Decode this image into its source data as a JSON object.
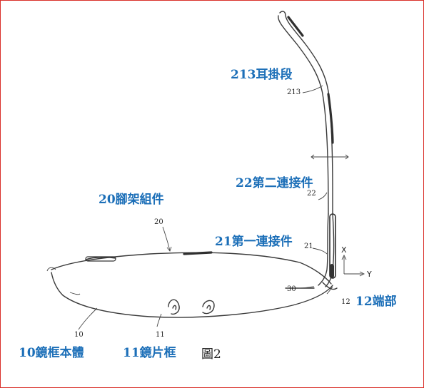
{
  "figure_label": "圖2",
  "labels": {
    "temple_end": "213耳掛段",
    "second_link": "22第二連接件",
    "temple_assembly": "20腳架組件",
    "first_link": "21第一連接件",
    "end_part": "12端部",
    "frame_body": "10鏡框本體",
    "lens_rim": "11鏡片框"
  },
  "ref_numbers": {
    "n213": "213",
    "n22": "22",
    "n20": "20",
    "n21": "21",
    "n30": "30",
    "n12": "12",
    "n10": "10",
    "n11": "11"
  },
  "axes": {
    "x": "X",
    "y": "Y"
  },
  "colors": {
    "label_blue": "#1c6fb8",
    "border_red": "#d9302a",
    "line": "#3a3a3a"
  }
}
